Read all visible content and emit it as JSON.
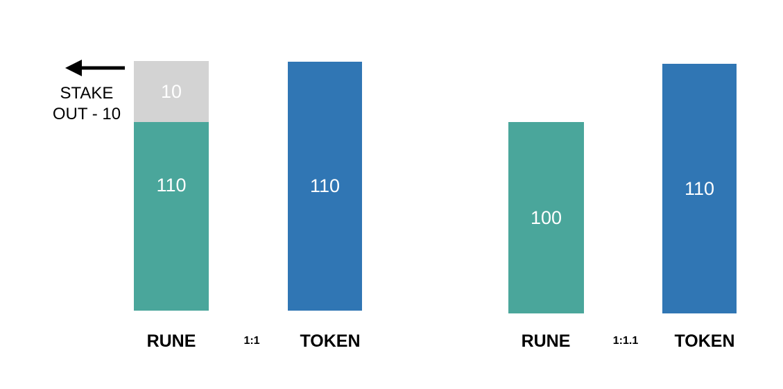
{
  "colors": {
    "rune": "#4aa69b",
    "token": "#3076b4",
    "stake_out": "#d3d3d3",
    "text_on_bar": "#ffffff",
    "label": "#000000"
  },
  "left_panel": {
    "rune": {
      "label": "RUNE",
      "value": "110",
      "stake_out_value": "10"
    },
    "ratio": "1:1",
    "token": {
      "label": "TOKEN",
      "value": "110"
    },
    "annotation": {
      "line1": "STAKE",
      "line2": "OUT - 10"
    }
  },
  "right_panel": {
    "rune": {
      "label": "RUNE",
      "value": "100"
    },
    "ratio": "1:1.1",
    "token": {
      "label": "TOKEN",
      "value": "110"
    }
  },
  "icons": {
    "arrow": "arrow-left-icon"
  }
}
